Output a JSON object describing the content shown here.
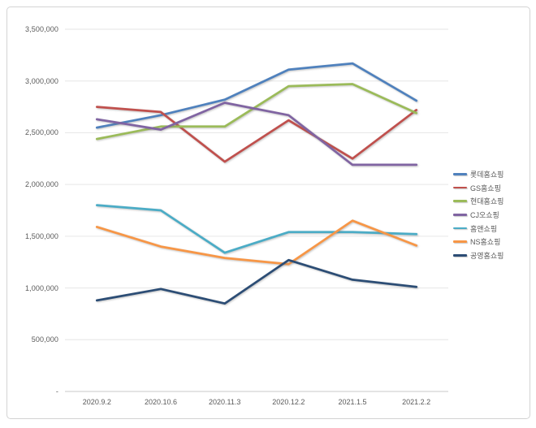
{
  "chart_data": {
    "type": "line",
    "title": "",
    "xlabel": "",
    "ylabel": "",
    "categories": [
      "2020.9.2",
      "2020.10.6",
      "2020.11.3",
      "2020.12.2",
      "2021.1.5",
      "2021.2.2"
    ],
    "series": [
      {
        "name": "롯데홈쇼핑",
        "color": "#4F81BD",
        "values": [
          2550000,
          2670000,
          2820000,
          3110000,
          3170000,
          2810000
        ]
      },
      {
        "name": "GS홈쇼핑",
        "color": "#C0504D",
        "values": [
          2750000,
          2700000,
          2220000,
          2620000,
          2250000,
          2720000
        ]
      },
      {
        "name": "현대홈쇼핑",
        "color": "#9BBB59",
        "values": [
          2440000,
          2560000,
          2560000,
          2950000,
          2970000,
          2690000
        ]
      },
      {
        "name": "CJ오쇼핑",
        "color": "#8064A2",
        "values": [
          2630000,
          2530000,
          2790000,
          2670000,
          2190000,
          2190000
        ]
      },
      {
        "name": "홈앤쇼핑",
        "color": "#4BACC6",
        "values": [
          1800000,
          1750000,
          1340000,
          1540000,
          1540000,
          1520000
        ]
      },
      {
        "name": "NS홈쇼핑",
        "color": "#F79646",
        "values": [
          1590000,
          1400000,
          1290000,
          1230000,
          1650000,
          1410000
        ]
      },
      {
        "name": "공영홈쇼핑",
        "color": "#2C4D75",
        "values": [
          880000,
          990000,
          850000,
          1270000,
          1080000,
          1010000
        ]
      }
    ],
    "ylim": [
      0,
      3500000
    ],
    "ytick_interval": 500000,
    "ytick_labels": [
      "-",
      "500,000",
      "1,000,000",
      "1,500,000",
      "2,000,000",
      "2,500,000",
      "3,000,000",
      "3,500,000"
    ],
    "grid": true,
    "legend_position": "right",
    "colors": {
      "gridline": "#e6e6e6",
      "axis_line": "#c9c9c9",
      "tick_text": "#595959",
      "legend_text": "#595959",
      "frame_border": "#d3d3d3",
      "background": "#ffffff"
    }
  }
}
